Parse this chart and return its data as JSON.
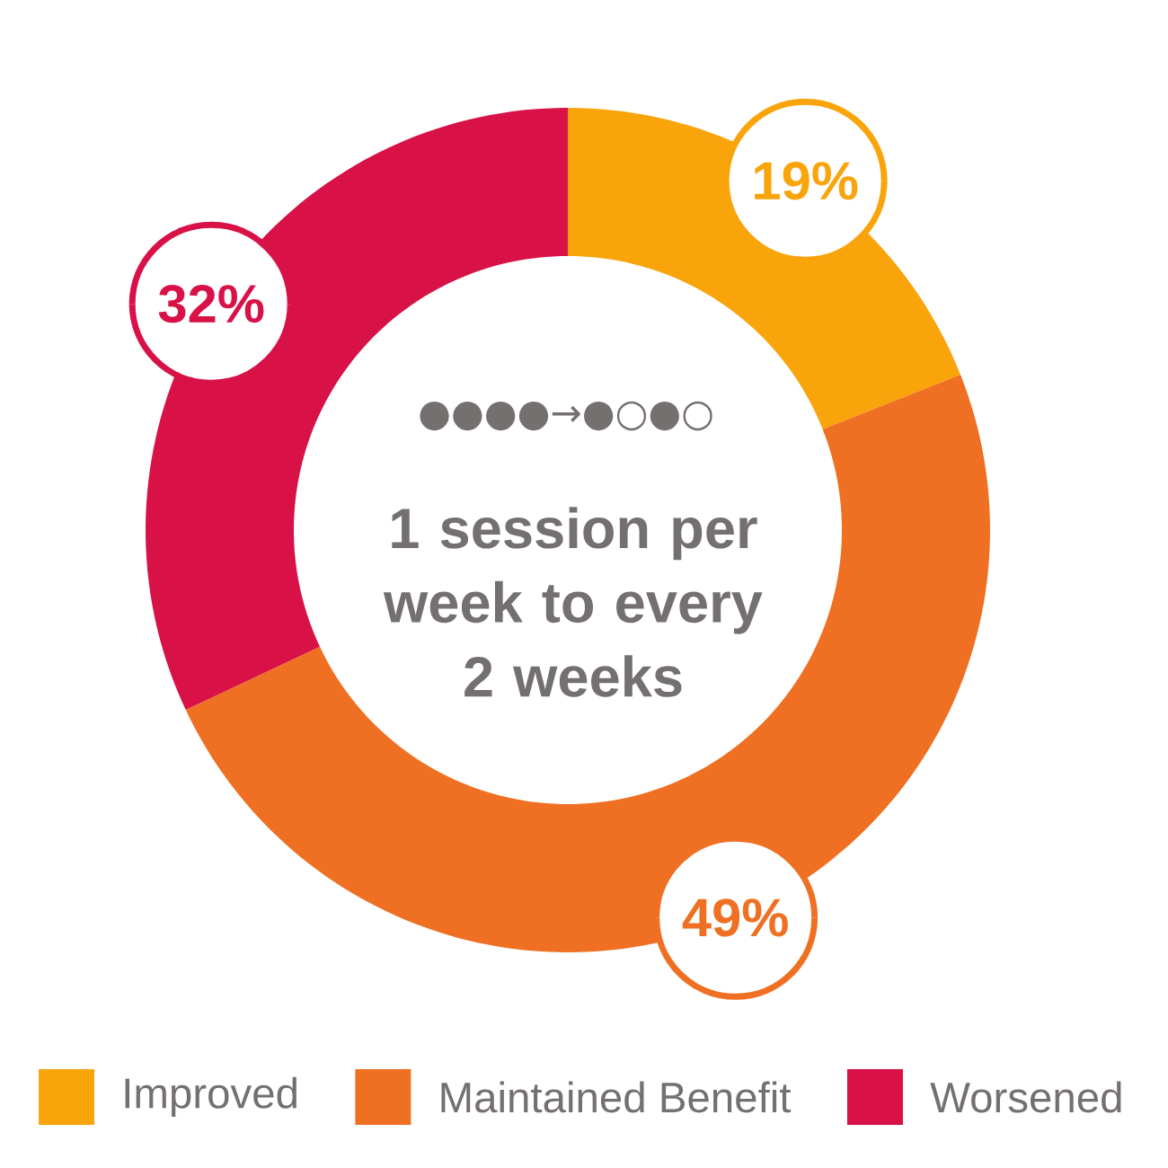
{
  "chart_data": {
    "type": "donut",
    "title": "1 session per week to every 2 weeks",
    "annotations": [
      "●●●●→●○●○"
    ],
    "categories": [
      "Improved",
      "Maintained Benefit",
      "Worsened"
    ],
    "values": [
      19,
      49,
      32
    ],
    "value_labels": [
      "19%",
      "49%",
      "32%"
    ],
    "colors": [
      "#f9a40b",
      "#ef7023",
      "#d81146"
    ],
    "legend": "bottom"
  }
}
